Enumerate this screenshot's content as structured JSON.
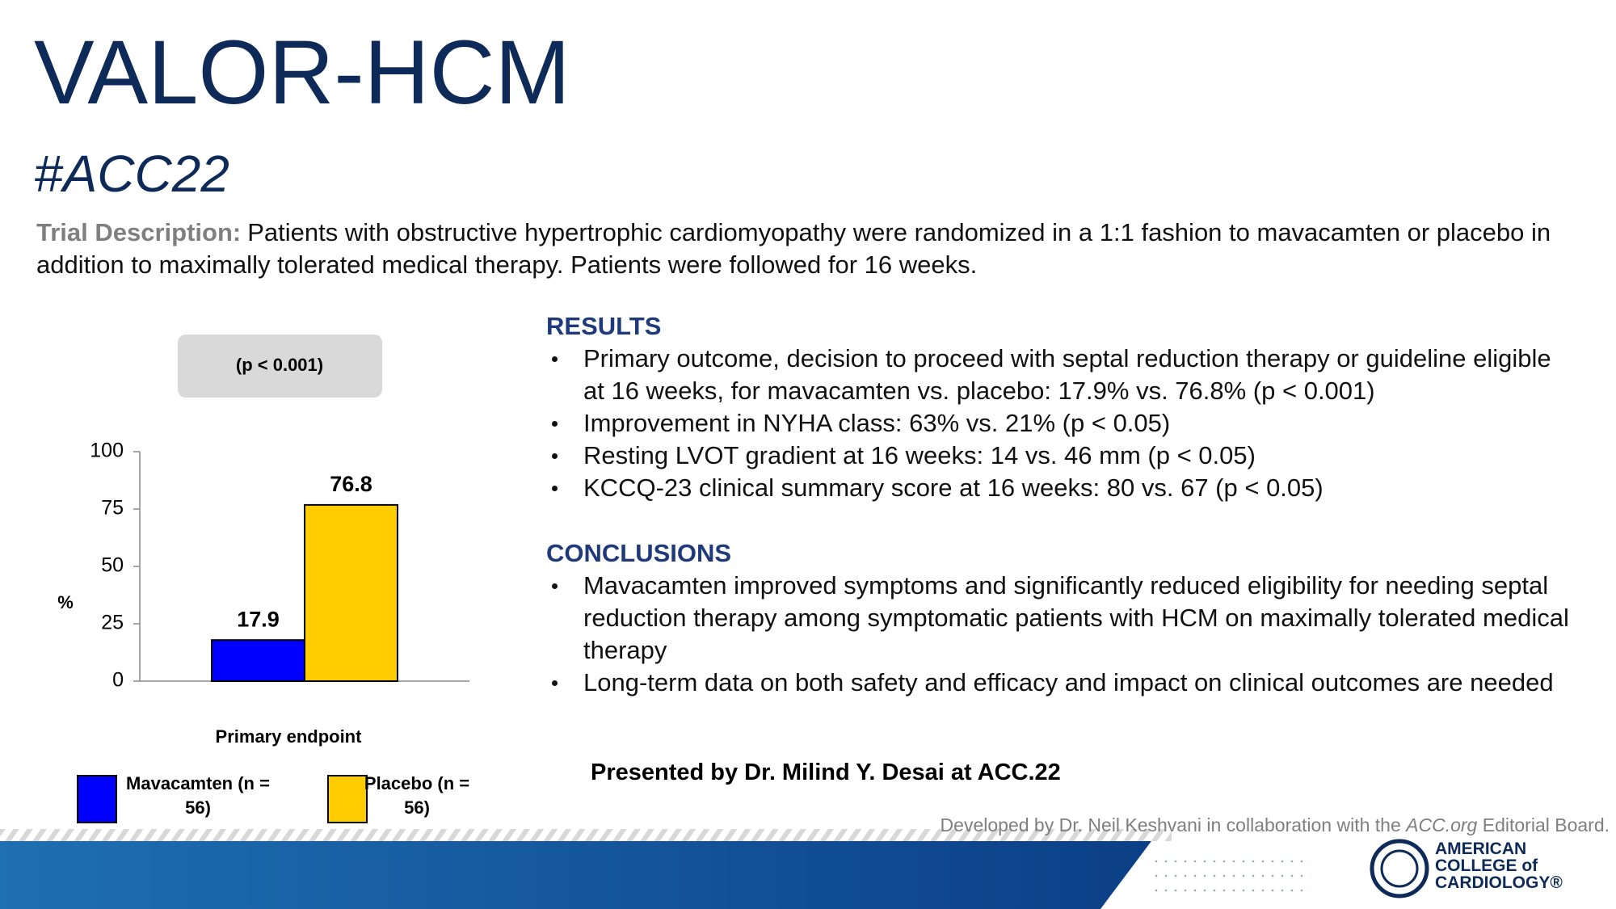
{
  "header": {
    "title": "VALOR-HCM",
    "hashtag": "#ACC22"
  },
  "description": {
    "label": "Trial Description:",
    "text": "Patients with obstructive hypertrophic cardiomyopathy were randomized in a 1:1 fashion to mavacamten or placebo in addition to maximally tolerated medical therapy. Patients were followed for 16 weeks."
  },
  "results": {
    "heading": "RESULTS",
    "bullets": [
      "Primary outcome, decision to proceed with septal reduction therapy or guideline eligible at 16 weeks, for mavacamten vs. placebo: 17.9% vs. 76.8% (p < 0.001)",
      "Improvement in NYHA class: 63% vs. 21% (p < 0.05)",
      "Resting LVOT gradient at 16 weeks: 14 vs. 46 mm (p < 0.05)",
      "KCCQ-23 clinical summary score at 16 weeks: 80 vs. 67 (p < 0.05)"
    ]
  },
  "conclusions": {
    "heading": "CONCLUSIONS",
    "bullets": [
      "Mavacamten improved symptoms and significantly reduced eligibility for needing septal reduction therapy among symptomatic patients with HCM on maximally tolerated medical therapy",
      "Long-term data on both safety and efficacy and impact on clinical outcomes are needed"
    ]
  },
  "presenter": "Presented by Dr. Milind Y. Desai at ACC.22",
  "credit": {
    "before": "Developed by Dr. Neil Keshvani in collaboration with the",
    "link": "ACC.org",
    "after": "Editorial Board."
  },
  "logo": {
    "lines": [
      "AMERICAN",
      "COLLEGE of",
      "CARDIOLOGY®"
    ]
  },
  "chart_data": {
    "type": "bar",
    "annotation": "(p < 0.001)",
    "ylabel": "%",
    "categories": [
      "Primary endpoint"
    ],
    "series": [
      {
        "name": "Mavacamten (n = 56)",
        "color": "#0000ff",
        "values": [
          17.9
        ]
      },
      {
        "name": "Placebo (n = 56)",
        "color": "#ffcc00",
        "values": [
          76.8
        ]
      }
    ],
    "ylim": [
      0,
      100
    ],
    "yticks": [
      0,
      25,
      50,
      75,
      100
    ],
    "grid": false
  }
}
